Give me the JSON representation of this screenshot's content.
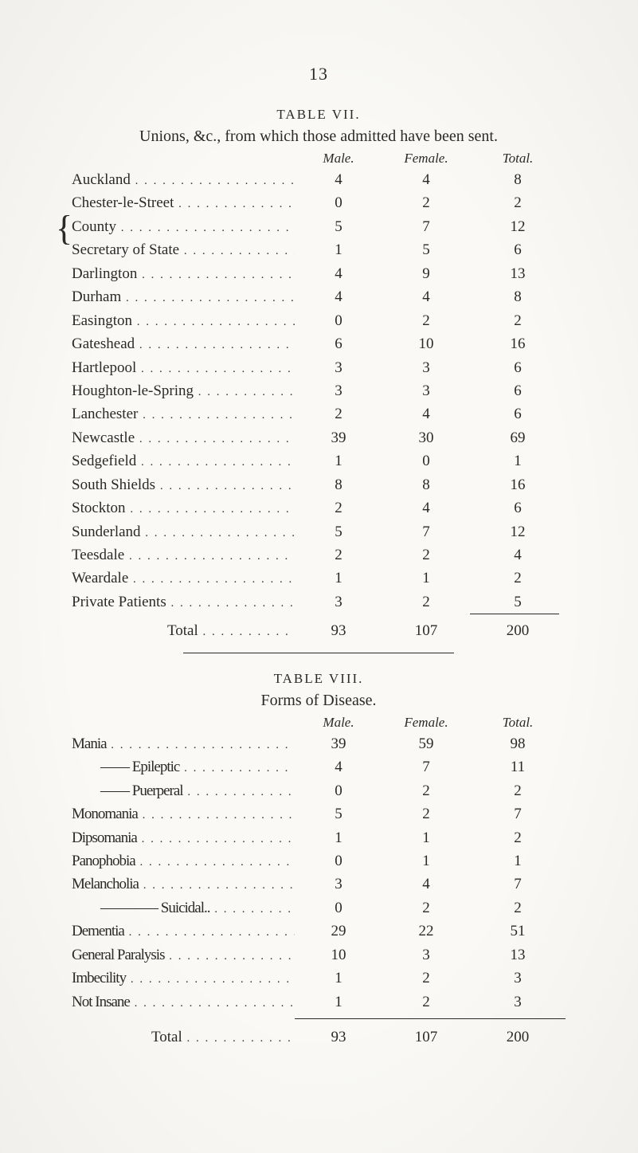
{
  "page_number": "13",
  "table7": {
    "label": "TABLE VII.",
    "caption": "Unions, &c., from which those admitted have been sent.",
    "headers": {
      "male": "Male.",
      "female": "Female.",
      "total": "Total."
    },
    "rows": [
      {
        "label": "Auckland",
        "m": "4",
        "f": "4",
        "t": "8"
      },
      {
        "label": "Chester-le-Street",
        "m": "0",
        "f": "2",
        "t": "2"
      },
      {
        "label": "County",
        "m": "5",
        "f": "7",
        "t": "12",
        "brace": true
      },
      {
        "label": "Secretary of State",
        "m": "1",
        "f": "5",
        "t": "6",
        "brace": true
      },
      {
        "label": "Darlington",
        "m": "4",
        "f": "9",
        "t": "13"
      },
      {
        "label": "Durham",
        "m": "4",
        "f": "4",
        "t": "8"
      },
      {
        "label": "Easington",
        "m": "0",
        "f": "2",
        "t": "2"
      },
      {
        "label": "Gateshead",
        "m": "6",
        "f": "10",
        "t": "16"
      },
      {
        "label": "Hartlepool",
        "m": "3",
        "f": "3",
        "t": "6"
      },
      {
        "label": "Houghton-le-Spring",
        "m": "3",
        "f": "3",
        "t": "6"
      },
      {
        "label": "Lanchester",
        "m": "2",
        "f": "4",
        "t": "6"
      },
      {
        "label": "Newcastle",
        "m": "39",
        "f": "30",
        "t": "69"
      },
      {
        "label": "Sedgefield",
        "m": "1",
        "f": "0",
        "t": "1"
      },
      {
        "label": "South Shields",
        "m": "8",
        "f": "8",
        "t": "16"
      },
      {
        "label": "Stockton",
        "m": "2",
        "f": "4",
        "t": "6"
      },
      {
        "label": "Sunderland",
        "m": "5",
        "f": "7",
        "t": "12"
      },
      {
        "label": "Teesdale",
        "m": "2",
        "f": "2",
        "t": "4"
      },
      {
        "label": "Weardale",
        "m": "1",
        "f": "1",
        "t": "2"
      },
      {
        "label": "Private Patients",
        "m": "3",
        "f": "2",
        "t": "5"
      }
    ],
    "total": {
      "label": "Total",
      "m": "93",
      "f": "107",
      "t": "200"
    }
  },
  "table8": {
    "label": "TABLE VIII.",
    "caption": "Forms of Disease.",
    "headers": {
      "male": "Male.",
      "female": "Female.",
      "total": "Total."
    },
    "rows": [
      {
        "label": "Mania",
        "m": "39",
        "f": "59",
        "t": "98"
      },
      {
        "label": "—— Epileptic",
        "m": "4",
        "f": "7",
        "t": "11",
        "indent": true
      },
      {
        "label": "—— Puerperal",
        "m": "0",
        "f": "2",
        "t": "2",
        "indent": true
      },
      {
        "label": "Monomania",
        "m": "5",
        "f": "2",
        "t": "7"
      },
      {
        "label": "Dipsomania",
        "m": "1",
        "f": "1",
        "t": "2"
      },
      {
        "label": "Panophobia",
        "m": "0",
        "f": "1",
        "t": "1"
      },
      {
        "label": "Melancholia",
        "m": "3",
        "f": "4",
        "t": "7"
      },
      {
        "label": "———— Suicidal..",
        "m": "0",
        "f": "2",
        "t": "2",
        "indent": true
      },
      {
        "label": "Dementia",
        "m": "29",
        "f": "22",
        "t": "51"
      },
      {
        "label": "General Paralysis",
        "m": "10",
        "f": "3",
        "t": "13"
      },
      {
        "label": "Imbecility",
        "m": "1",
        "f": "2",
        "t": "3"
      },
      {
        "label": "Not Insane",
        "m": "1",
        "f": "2",
        "t": "3"
      }
    ],
    "total": {
      "label": "Total",
      "m": "93",
      "f": "107",
      "t": "200"
    }
  },
  "colors": {
    "paper": "#faf9f5",
    "ink": "#2c2a27"
  }
}
